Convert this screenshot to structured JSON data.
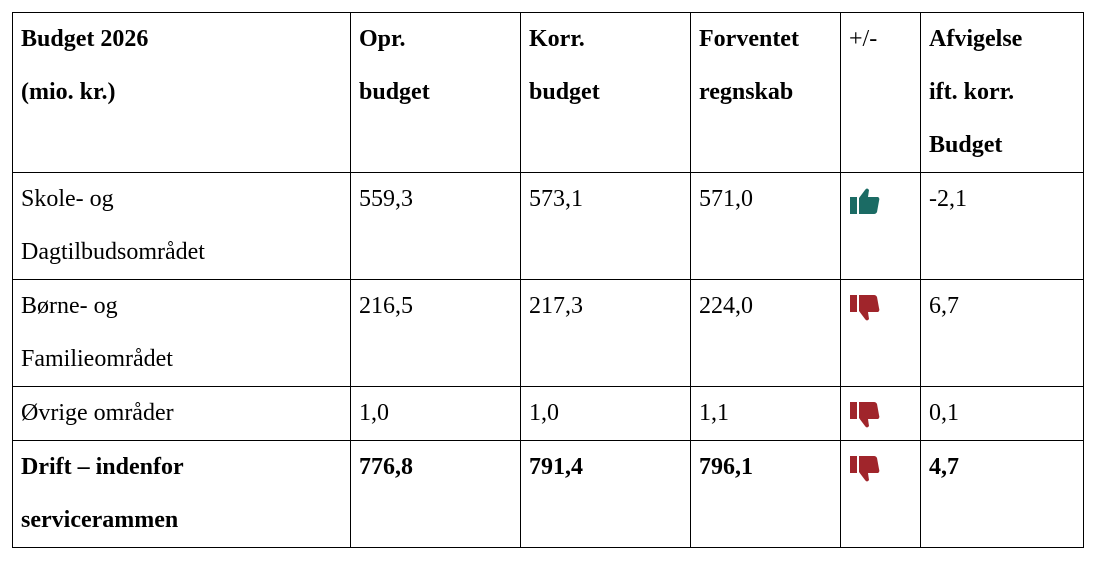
{
  "table": {
    "header": [
      [
        "Budget 2026",
        "(mio. kr.)"
      ],
      [
        "Opr.",
        "budget"
      ],
      [
        "Korr.",
        "budget"
      ],
      [
        "Forventet",
        "regnskab"
      ],
      [
        "+/-"
      ],
      [
        "Afvigelse",
        "ift. korr.",
        "Budget"
      ]
    ],
    "rows": [
      [
        [
          "Skole- og",
          "Dagtilbudsområdet"
        ],
        "559,3",
        "573,1",
        "571,0",
        "-2,1"
      ],
      [
        [
          "Børne- og",
          "Familieområdet"
        ],
        "216,5",
        "217,3",
        "224,0",
        "6,7"
      ],
      [
        [
          "Øvrige områder"
        ],
        "1,0",
        "1,0",
        "1,1",
        "0,1"
      ],
      [
        [
          "Drift – indenfor",
          "servicerammen"
        ],
        "776,8",
        "791,4",
        "796,1",
        "4,7"
      ]
    ]
  }
}
